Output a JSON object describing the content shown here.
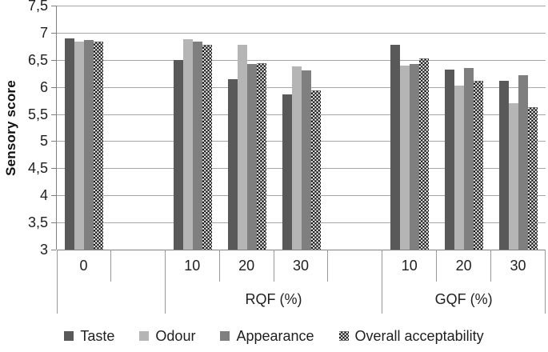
{
  "chart_data": {
    "type": "bar",
    "title": "",
    "ylabel": "Sensory score",
    "xlabel": "",
    "ylim": [
      3,
      7.5
    ],
    "ytick_step": 0.5,
    "ytick_labels": [
      "3",
      "3,5",
      "4",
      "4,5",
      "5",
      "5,5",
      "6",
      "6,5",
      "7",
      "7,5"
    ],
    "decimal_separator": ",",
    "grid": true,
    "legend_position": "bottom",
    "categories": [
      "0",
      "",
      "10",
      "20",
      "30",
      "",
      "10",
      "20",
      "30"
    ],
    "category_groups": [
      {
        "label": "",
        "span": 2
      },
      {
        "label": "RQF (%)",
        "span": 4
      },
      {
        "label": "GQF (%)",
        "span": 3
      }
    ],
    "series": [
      {
        "name": "Taste",
        "color": "#595959",
        "pattern": "solid",
        "values": [
          6.9,
          null,
          6.5,
          6.14,
          5.86,
          null,
          6.78,
          6.32,
          6.11
        ]
      },
      {
        "name": "Odour",
        "color": "#b5b5b5",
        "pattern": "solid",
        "values": [
          6.84,
          null,
          6.88,
          6.78,
          6.38,
          null,
          6.39,
          6.03,
          5.7
        ]
      },
      {
        "name": "Appearance",
        "color": "#7f7f7f",
        "pattern": "solid",
        "values": [
          6.86,
          null,
          6.84,
          6.42,
          6.31,
          null,
          6.43,
          6.35,
          6.21
        ]
      },
      {
        "name": "Overall acceptability",
        "color": "#070707",
        "pattern": "white-dots",
        "values": [
          6.84,
          null,
          6.77,
          6.44,
          5.93,
          null,
          6.52,
          6.11,
          5.63
        ]
      }
    ],
    "colors": {
      "gridline": "#a6a6a6",
      "axis_line": "#808080",
      "divider_line": "#999999",
      "text": "#1f1f1f",
      "background": "#ffffff"
    }
  }
}
